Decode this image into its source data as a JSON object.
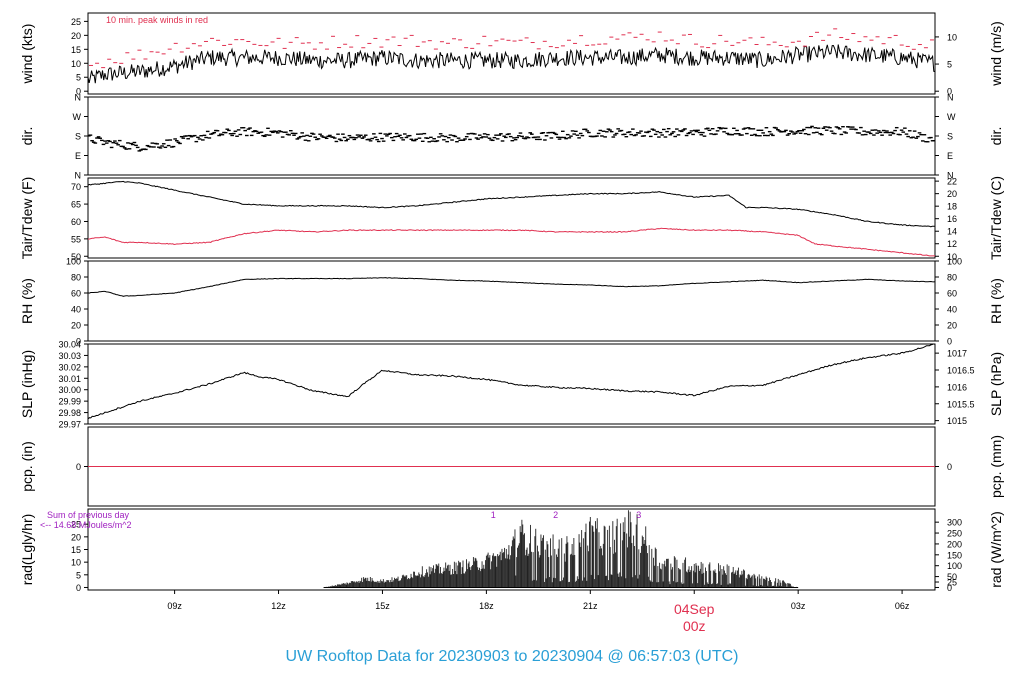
{
  "title": "UW Rooftop Data for 20230903  to  20230904 @ 06:57:03  (UTC)",
  "colors": {
    "black": "#000000",
    "red": "#e03050",
    "purple": "#a020c0",
    "blue": "#2a9fd6"
  },
  "x_axis": {
    "range": [
      6.5,
      30.95
    ],
    "ticks": [
      {
        "value": 9,
        "label": "09z"
      },
      {
        "value": 12,
        "label": "12z"
      },
      {
        "value": 15,
        "label": "15z"
      },
      {
        "value": 18,
        "label": "18z"
      },
      {
        "value": 21,
        "label": "21z"
      },
      {
        "value": 27,
        "label": "03z"
      },
      {
        "value": 30,
        "label": "06z"
      }
    ],
    "day_marker": {
      "value": 24,
      "date": "04Sep",
      "time": "00z"
    }
  },
  "chart_data": [
    {
      "type": "line",
      "ylabel_left": "wind (kts)",
      "ylabel_right": "wind (m/s)",
      "ylim": [
        -1,
        28
      ],
      "left_ticks": [
        0,
        5,
        10,
        15,
        20,
        25
      ],
      "right_ticks": [
        0,
        5,
        10
      ],
      "annotation": "10 min. peak winds in red",
      "series": [
        {
          "x": [
            6.5,
            7,
            8,
            9,
            10,
            11,
            12,
            13,
            14,
            15,
            16,
            17,
            18,
            19,
            20,
            21,
            22,
            23,
            24,
            25,
            26,
            27,
            28,
            29,
            30,
            30.95
          ],
          "values": [
            4,
            6,
            7,
            9,
            12,
            12,
            12,
            11,
            11,
            12,
            11,
            11,
            11,
            11,
            12,
            12,
            12,
            13,
            12,
            12,
            11,
            13,
            14,
            13,
            12,
            10
          ]
        },
        {
          "x": [
            6.5,
            7,
            8,
            9,
            10,
            11,
            12,
            13,
            14,
            15,
            16,
            17,
            18,
            19,
            20,
            21,
            22,
            23,
            24,
            25,
            26,
            27,
            28,
            29,
            30,
            30.95
          ],
          "values": [
            9,
            11,
            13,
            16,
            18,
            18,
            17,
            17,
            18,
            18,
            18,
            17,
            18,
            17,
            18,
            19,
            19,
            20,
            18,
            18,
            17,
            18,
            20,
            19,
            18,
            16
          ]
        }
      ]
    },
    {
      "type": "scatter",
      "ylabel_left": "dir.",
      "ylabel_right": "dir.",
      "ylim": [
        0,
        360
      ],
      "tick_values": [
        0,
        90,
        180,
        270,
        360
      ],
      "tick_labels": [
        "N",
        "E",
        "S",
        "W",
        "N"
      ],
      "x": [
        6.5,
        7,
        8,
        9,
        10,
        11,
        12,
        13,
        14,
        15,
        16,
        17,
        18,
        19,
        20,
        21,
        22,
        23,
        24,
        25,
        26,
        27,
        28,
        29,
        30,
        30.95
      ],
      "values": [
        170,
        150,
        130,
        150,
        185,
        200,
        195,
        175,
        170,
        175,
        175,
        170,
        175,
        175,
        180,
        195,
        195,
        195,
        195,
        205,
        200,
        205,
        205,
        200,
        200,
        160
      ]
    },
    {
      "type": "line",
      "ylabel_left": "Tair/Tdew (F)",
      "ylabel_right": "Tair/Tdew (C)",
      "ylim": [
        49.5,
        72.5
      ],
      "left_ticks": [
        50,
        55,
        60,
        65,
        70
      ],
      "right_ticks": [
        10,
        12,
        14,
        16,
        18,
        20,
        22
      ],
      "series": [
        {
          "x": [
            6.5,
            7,
            7.5,
            8,
            9,
            10,
            11,
            12,
            13,
            14,
            15,
            16,
            17,
            18,
            19,
            20,
            21,
            22,
            23,
            24,
            25,
            25.5,
            26,
            27,
            28,
            29,
            30,
            30.95
          ],
          "values": [
            70.5,
            71,
            71.5,
            71,
            69,
            67,
            65,
            64.5,
            64.5,
            64.5,
            64,
            64.5,
            65.5,
            66.5,
            67,
            67.5,
            68,
            68,
            68.5,
            67,
            67.5,
            64,
            64,
            63.5,
            62,
            60,
            59,
            58.5
          ]
        },
        {
          "x": [
            6.5,
            7,
            7.5,
            8,
            9,
            10,
            11,
            12,
            13,
            14,
            15,
            16,
            17,
            18,
            19,
            20,
            21,
            22,
            23,
            24,
            25,
            26,
            27,
            27.5,
            28,
            29,
            30,
            30.95
          ],
          "values": [
            55,
            55.5,
            54,
            54,
            53.5,
            54,
            56.5,
            57.5,
            57,
            57.5,
            57.5,
            57.5,
            57.5,
            57.5,
            57.5,
            57,
            57,
            57,
            58,
            57.5,
            57.5,
            57,
            56,
            53.5,
            53,
            52,
            51,
            50
          ]
        }
      ]
    },
    {
      "type": "line",
      "ylabel_left": "RH (%)",
      "ylabel_right": "RH (%)",
      "ylim": [
        0,
        100
      ],
      "left_ticks": [
        0,
        20,
        40,
        60,
        80,
        100
      ],
      "right_ticks": [
        0,
        20,
        40,
        60,
        80,
        100
      ],
      "series": [
        {
          "x": [
            6.5,
            7,
            7.5,
            8,
            9,
            10,
            11,
            12,
            13,
            14,
            15,
            16,
            17,
            18,
            19,
            20,
            21,
            22,
            23,
            24,
            25,
            26,
            27,
            28,
            29,
            30,
            30.95
          ],
          "values": [
            60,
            62,
            56,
            57,
            60,
            68,
            77,
            78,
            78,
            78,
            79,
            78,
            76,
            75,
            73,
            71,
            70,
            68,
            69,
            72,
            74,
            76,
            73,
            75,
            77,
            75,
            74
          ]
        }
      ]
    },
    {
      "type": "line",
      "ylabel_left": "SLP (inHg)",
      "ylabel_right": "SLP (hPa)",
      "ylim": [
        29.97,
        30.04
      ],
      "left_ticks": [
        29.97,
        29.98,
        29.99,
        30.0,
        30.01,
        30.02,
        30.03,
        30.04
      ],
      "left_tick_labels": [
        "29.97",
        "29.98",
        "29.99",
        "30.00",
        "30.01",
        "30.02",
        "30.03",
        "30.04"
      ],
      "right_ticks": [
        1015,
        1015.5,
        1016,
        1016.5,
        1017
      ],
      "right_tick_labels": [
        "1015",
        "1015.5",
        "1016",
        "1016.5",
        "1017"
      ],
      "series": [
        {
          "x": [
            6.5,
            7,
            8,
            9,
            10,
            11,
            11.5,
            12,
            13,
            14,
            14.5,
            15,
            16,
            17,
            18,
            19,
            20,
            21,
            22,
            23,
            24,
            25,
            26,
            27,
            28,
            29,
            30,
            30.95
          ],
          "values": [
            29.975,
            29.98,
            29.99,
            29.997,
            30.005,
            30.015,
            30.011,
            30.009,
            29.999,
            29.994,
            30.006,
            30.017,
            30.013,
            30.012,
            30.009,
            30.004,
            30.002,
            30.001,
            29.999,
            29.998,
            29.995,
            30.003,
            30.004,
            30.013,
            30.022,
            30.028,
            30.032,
            30.04
          ]
        }
      ]
    },
    {
      "type": "line",
      "ylabel_left": "pcp. (in)",
      "ylabel_right": "pcp. (mm)",
      "ylim": [
        -1,
        1
      ],
      "left_ticks": [
        0
      ],
      "right_ticks": [
        0
      ],
      "series": [
        {
          "x": [
            6.5,
            30.95
          ],
          "values": [
            0,
            0
          ]
        }
      ]
    },
    {
      "type": "bar",
      "ylabel_left": "rad(Lgly/hr)",
      "ylabel_right": "rad (W/m^2)",
      "ylim": [
        -1,
        31
      ],
      "left_ticks": [
        0,
        5,
        10,
        15,
        20,
        25
      ],
      "right_ticks": [
        0,
        25,
        50,
        100,
        150,
        200,
        250,
        300
      ],
      "annotation_line1": "Sum of previous day",
      "annotation_line2": "<-- 14.68 MJoules/m^2",
      "markers": [
        {
          "x": 18.2,
          "label": "1"
        },
        {
          "x": 20,
          "label": "2"
        },
        {
          "x": 22.4,
          "label": "3"
        }
      ],
      "x": [
        13.3,
        14,
        14.5,
        15,
        15.5,
        16,
        16.5,
        17,
        17.5,
        18,
        18.5,
        19,
        19.5,
        20,
        20.5,
        21,
        21.5,
        22,
        22.5,
        23,
        23.5,
        24,
        24.5,
        25,
        25.5,
        26,
        26.5,
        27
      ],
      "values": [
        0,
        2,
        4,
        3,
        4,
        7,
        8,
        9,
        10,
        12,
        15,
        24,
        20,
        18,
        18,
        25,
        22,
        28,
        24,
        12,
        11,
        10,
        9,
        8,
        6,
        4,
        3,
        0
      ]
    }
  ]
}
